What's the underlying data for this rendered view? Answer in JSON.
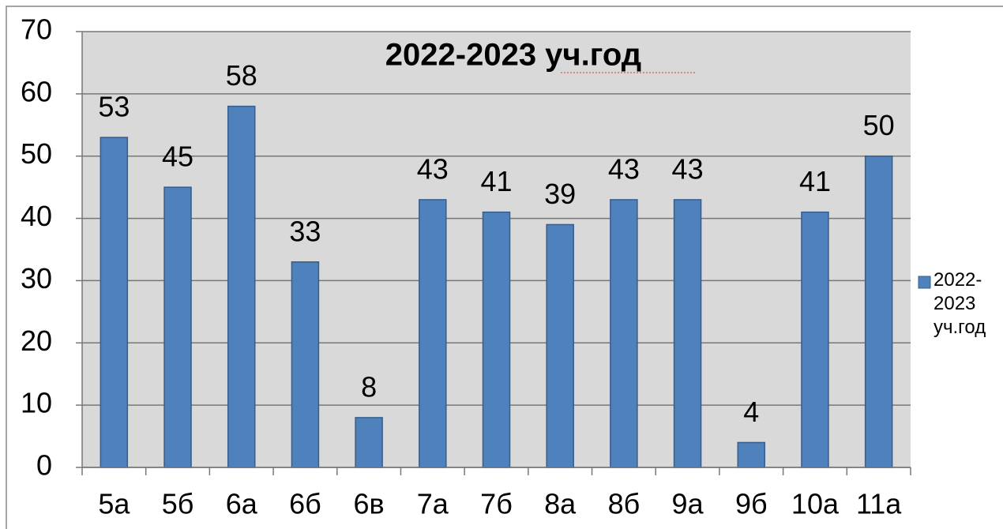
{
  "chart_data": {
    "type": "bar",
    "title": "2022-2023 уч.год",
    "categories": [
      "5а",
      "5б",
      "6а",
      "6б",
      "6в",
      "7а",
      "7б",
      "8а",
      "8б",
      "9а",
      "9б",
      "10а",
      "11а"
    ],
    "series": [
      {
        "name": "2022-2023 уч.год",
        "color": "#4f81bd",
        "values": [
          53,
          45,
          58,
          33,
          8,
          43,
          41,
          39,
          43,
          43,
          4,
          41,
          50
        ]
      }
    ],
    "ylim": [
      0,
      70
    ],
    "yticks": [
      0,
      10,
      20,
      30,
      40,
      50,
      60,
      70
    ],
    "grid": true,
    "legend": "right"
  }
}
